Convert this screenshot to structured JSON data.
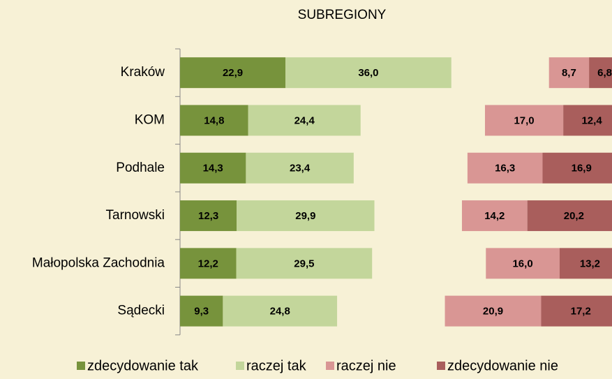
{
  "chart_data": {
    "type": "bar",
    "stacked": true,
    "diverging": true,
    "orientation": "horizontal",
    "title": "SUBREGIONY",
    "categories": [
      "Kraków",
      "KOM",
      "Podhale",
      "Tarnowski",
      "Małopolska Zachodnia",
      "Sądecki"
    ],
    "series": [
      {
        "name": "zdecydowanie tak",
        "color": "#77933c",
        "values": [
          22.9,
          14.8,
          14.3,
          12.3,
          12.2,
          9.3
        ],
        "value_labels": [
          "22,9",
          "14,8",
          "14,3",
          "12,3",
          "12,2",
          "9,3"
        ]
      },
      {
        "name": "raczej tak",
        "color": "#c3d69b",
        "values": [
          36.0,
          24.4,
          23.4,
          29.9,
          29.5,
          24.8
        ],
        "value_labels": [
          "36,0",
          "24,4",
          "23,4",
          "29,9",
          "29,5",
          "24,8"
        ]
      },
      {
        "name": "raczej nie",
        "color": "#d99694",
        "values": [
          8.7,
          17.0,
          16.3,
          14.2,
          16.0,
          20.9
        ],
        "value_labels": [
          "8,7",
          "17,0",
          "16,3",
          "14,2",
          "16,0",
          "20,9"
        ]
      },
      {
        "name": "zdecydowanie nie",
        "color": "#a95e5c",
        "values": [
          6.8,
          12.4,
          16.9,
          20.2,
          13.2,
          17.2
        ],
        "value_labels": [
          "6,8",
          "12,4",
          "16,9",
          "20,2",
          "13,2",
          "17,2"
        ]
      }
    ]
  }
}
